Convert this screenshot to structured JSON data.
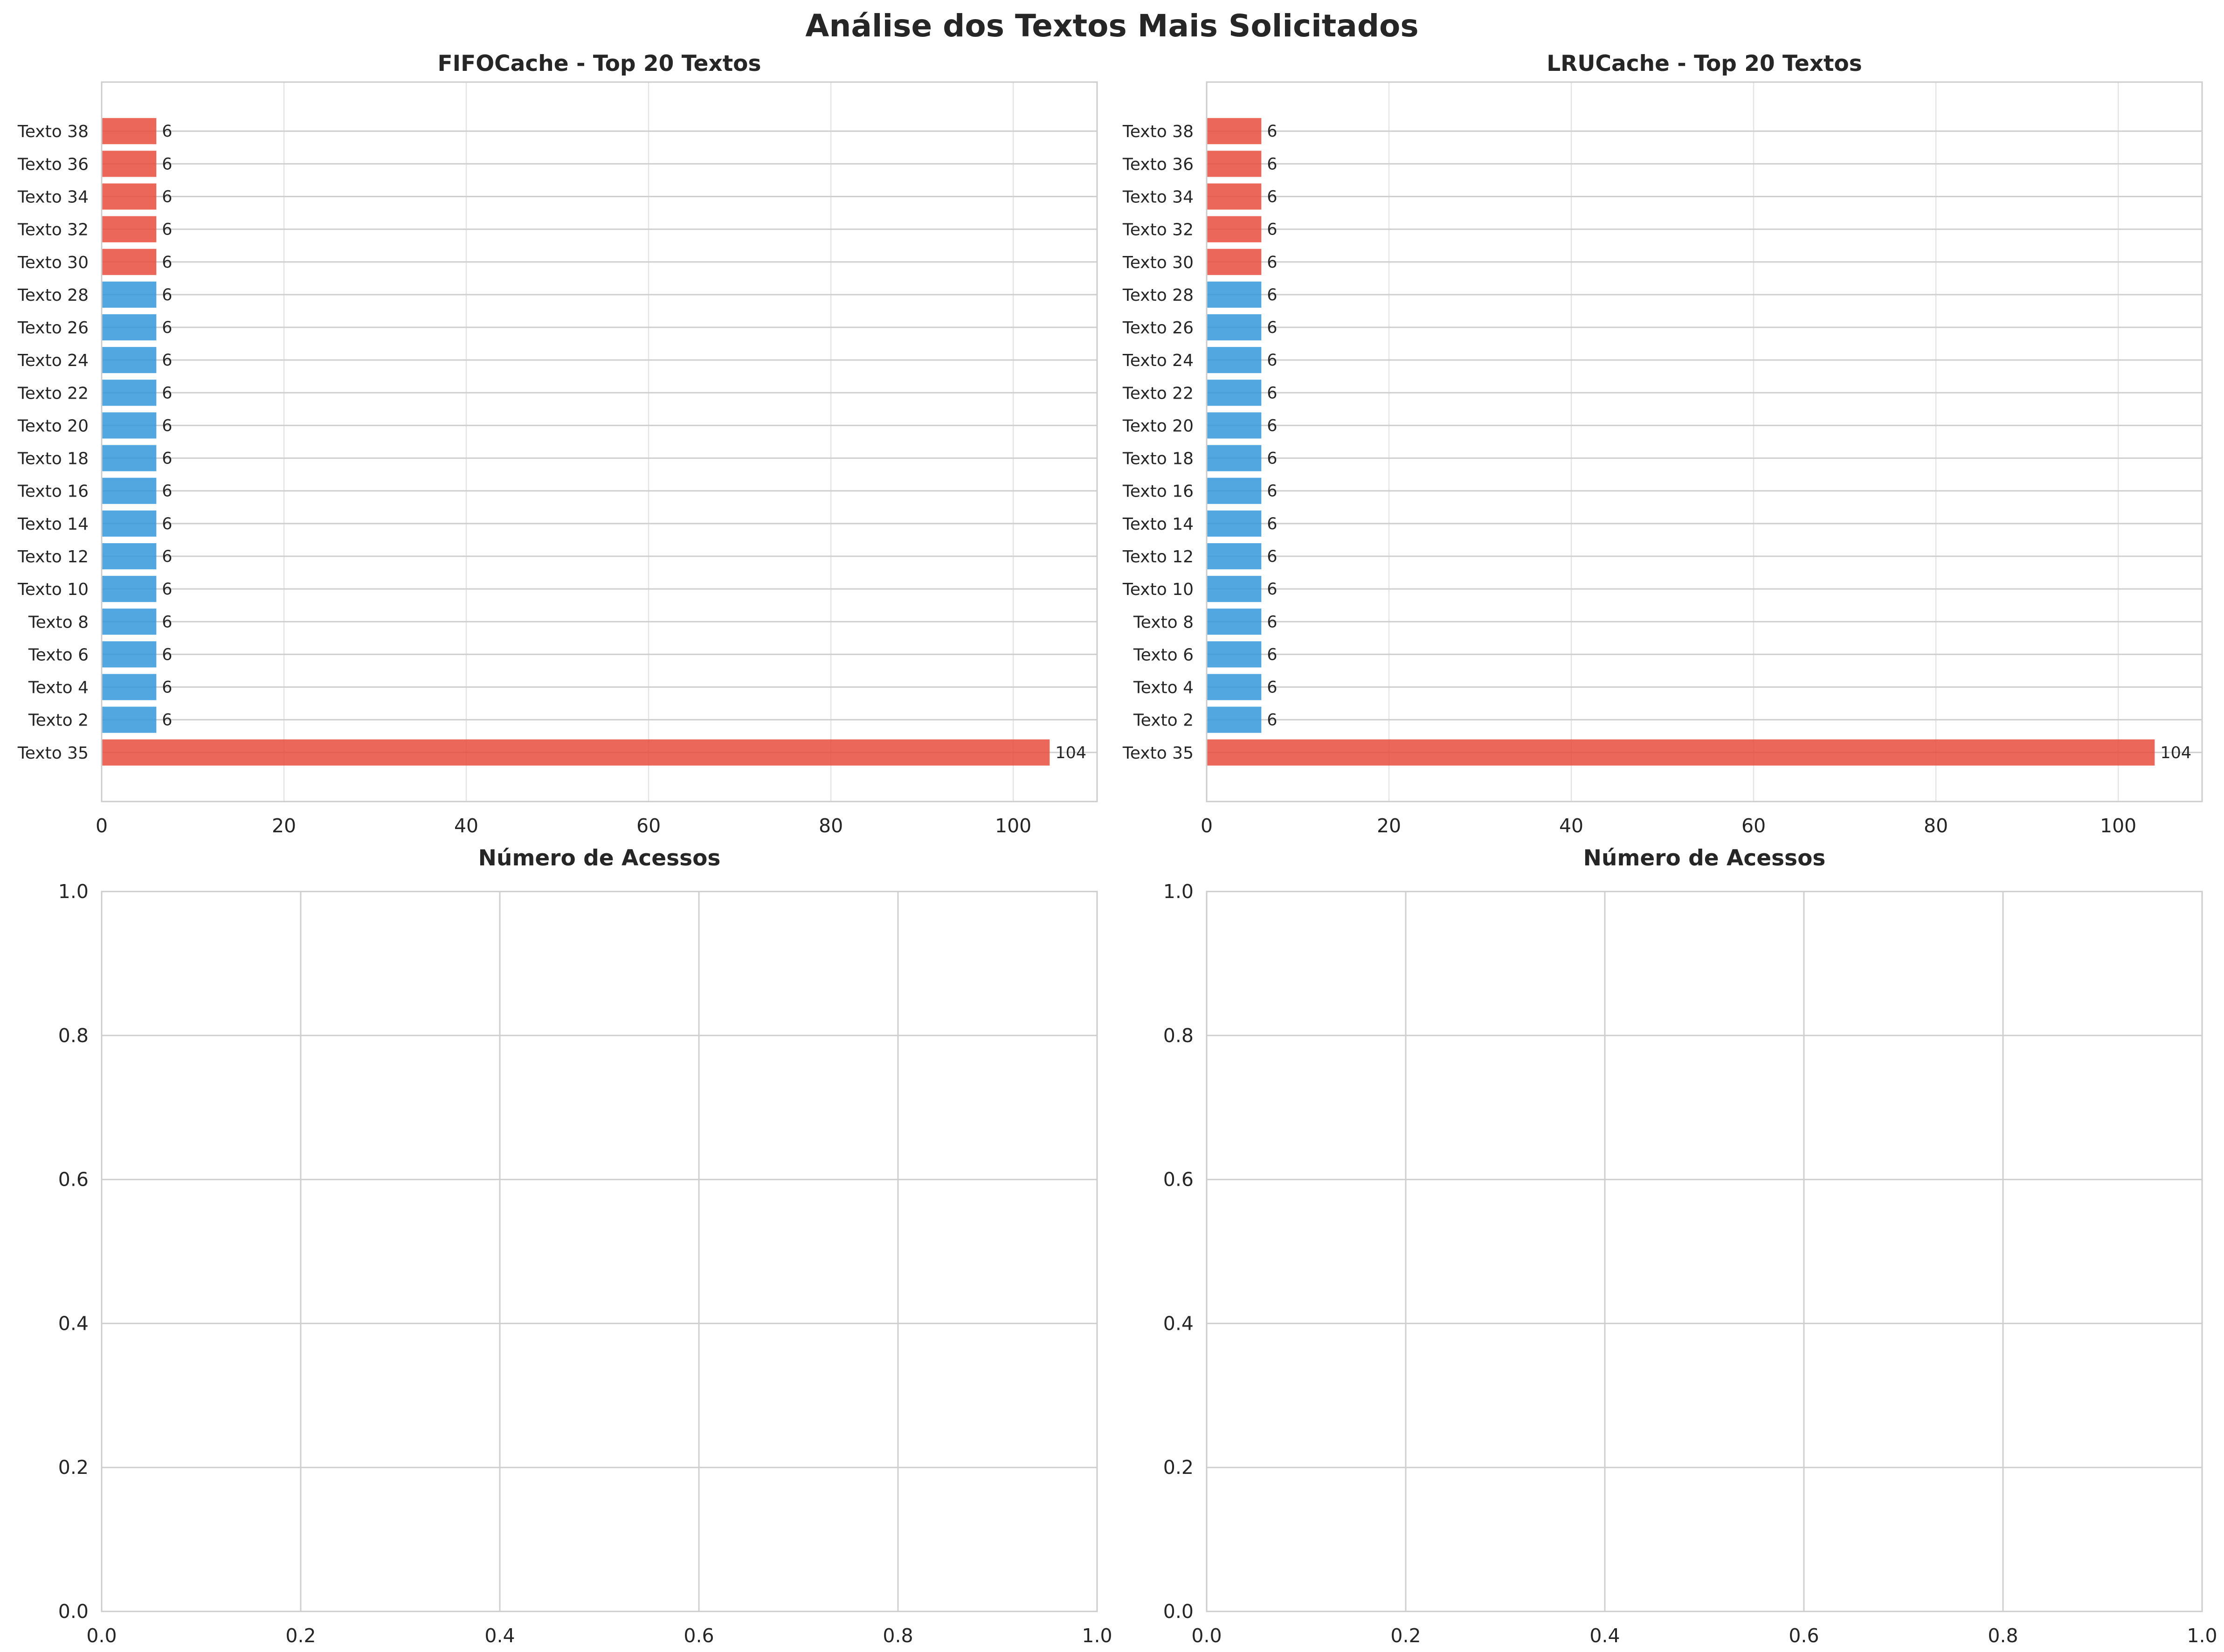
{
  "figure": {
    "suptitle": "Análise dos Textos Mais Solicitados"
  },
  "colors": {
    "highlight": "#e74c3c",
    "normal": "#3498db",
    "grid": "#e4e4e4",
    "frame": "#cccccc",
    "text": "#262626"
  },
  "chart_data": [
    {
      "type": "bar",
      "orientation": "horizontal",
      "title": "FIFOCache - Top 20 Textos",
      "xlabel": "Número de Acessos",
      "ylabel": "",
      "xlim": [
        0,
        109.2
      ],
      "xticks": [
        0,
        20,
        40,
        60,
        80,
        100
      ],
      "grid": true,
      "categories": [
        "Texto 35",
        "Texto 2",
        "Texto 4",
        "Texto 6",
        "Texto 8",
        "Texto 10",
        "Texto 12",
        "Texto 14",
        "Texto 16",
        "Texto 18",
        "Texto 20",
        "Texto 22",
        "Texto 24",
        "Texto 26",
        "Texto 28",
        "Texto 30",
        "Texto 32",
        "Texto 34",
        "Texto 36",
        "Texto 38"
      ],
      "values": [
        104,
        6,
        6,
        6,
        6,
        6,
        6,
        6,
        6,
        6,
        6,
        6,
        6,
        6,
        6,
        6,
        6,
        6,
        6,
        6
      ],
      "value_labels": [
        "104",
        "6",
        "6",
        "6",
        "6",
        "6",
        "6",
        "6",
        "6",
        "6",
        "6",
        "6",
        "6",
        "6",
        "6",
        "6",
        "6",
        "6",
        "6",
        "6"
      ],
      "bar_colors": [
        "highlight",
        "normal",
        "normal",
        "normal",
        "normal",
        "normal",
        "normal",
        "normal",
        "normal",
        "normal",
        "normal",
        "normal",
        "normal",
        "normal",
        "normal",
        "highlight",
        "highlight",
        "highlight",
        "highlight",
        "highlight"
      ]
    },
    {
      "type": "bar",
      "orientation": "horizontal",
      "title": "LRUCache - Top 20 Textos",
      "xlabel": "Número de Acessos",
      "ylabel": "",
      "xlim": [
        0,
        109.2
      ],
      "xticks": [
        0,
        20,
        40,
        60,
        80,
        100
      ],
      "grid": true,
      "categories": [
        "Texto 35",
        "Texto 2",
        "Texto 4",
        "Texto 6",
        "Texto 8",
        "Texto 10",
        "Texto 12",
        "Texto 14",
        "Texto 16",
        "Texto 18",
        "Texto 20",
        "Texto 22",
        "Texto 24",
        "Texto 26",
        "Texto 28",
        "Texto 30",
        "Texto 32",
        "Texto 34",
        "Texto 36",
        "Texto 38"
      ],
      "values": [
        104,
        6,
        6,
        6,
        6,
        6,
        6,
        6,
        6,
        6,
        6,
        6,
        6,
        6,
        6,
        6,
        6,
        6,
        6,
        6
      ],
      "value_labels": [
        "104",
        "6",
        "6",
        "6",
        "6",
        "6",
        "6",
        "6",
        "6",
        "6",
        "6",
        "6",
        "6",
        "6",
        "6",
        "6",
        "6",
        "6",
        "6",
        "6"
      ],
      "bar_colors": [
        "highlight",
        "normal",
        "normal",
        "normal",
        "normal",
        "normal",
        "normal",
        "normal",
        "normal",
        "normal",
        "normal",
        "normal",
        "normal",
        "normal",
        "normal",
        "highlight",
        "highlight",
        "highlight",
        "highlight",
        "highlight"
      ]
    },
    {
      "type": "empty",
      "title": "",
      "xlim": [
        0,
        1
      ],
      "ylim": [
        0,
        1
      ],
      "xticks": [
        "0.0",
        "0.2",
        "0.4",
        "0.6",
        "0.8",
        "1.0"
      ],
      "yticks": [
        "0.0",
        "0.2",
        "0.4",
        "0.6",
        "0.8",
        "1.0"
      ],
      "grid": true
    },
    {
      "type": "empty",
      "title": "",
      "xlim": [
        0,
        1
      ],
      "ylim": [
        0,
        1
      ],
      "xticks": [
        "0.0",
        "0.2",
        "0.4",
        "0.6",
        "0.8",
        "1.0"
      ],
      "yticks": [
        "0.0",
        "0.2",
        "0.4",
        "0.6",
        "0.8",
        "1.0"
      ],
      "grid": true
    }
  ]
}
